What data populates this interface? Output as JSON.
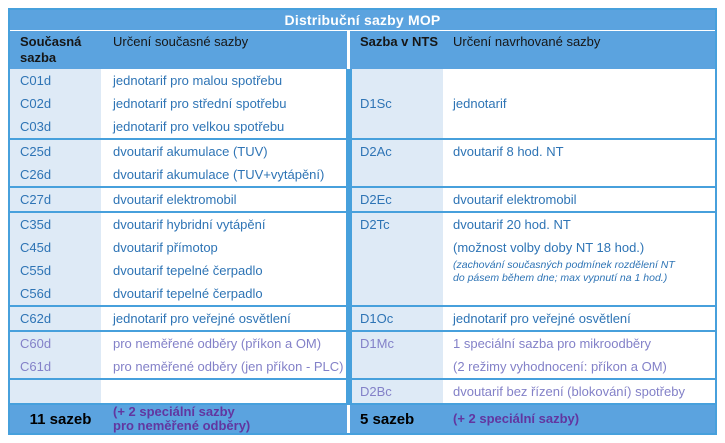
{
  "title": "Distribuční sazby MOP",
  "header": {
    "current_rate": "Současná sazba",
    "current_desc": "Určení současné sazby",
    "nts_rate": "Sazba v NTS",
    "proposed_desc": "Určení navrhované sazby"
  },
  "groups": [
    {
      "special": false,
      "left": [
        {
          "code": "C01d",
          "desc": "jednotarif pro malou spotřebu"
        },
        {
          "code": "C02d",
          "desc": "jednotarif pro střední spotřebu"
        },
        {
          "code": "C03d",
          "desc": "jednotarif pro velkou spotřebu"
        }
      ],
      "right": {
        "code": "D1Sc",
        "valign": "center",
        "lines": [
          {
            "text": "jednotarif",
            "style": "normal"
          }
        ]
      }
    },
    {
      "special": false,
      "left": [
        {
          "code": "C25d",
          "desc": "dvoutarif akumulace (TUV)"
        },
        {
          "code": "C26d",
          "desc": "dvoutarif akumulace (TUV+vytápění)"
        }
      ],
      "right": {
        "code": "D2Ac",
        "valign": "top",
        "lines": [
          {
            "text": "dvoutarif 8 hod. NT",
            "style": "normal"
          }
        ]
      }
    },
    {
      "special": false,
      "left": [
        {
          "code": "C27d",
          "desc": "dvoutarif elektromobil"
        }
      ],
      "right": {
        "code": "D2Ec",
        "valign": "top",
        "lines": [
          {
            "text": "dvoutarif elektromobil",
            "style": "normal"
          }
        ]
      }
    },
    {
      "special": false,
      "left": [
        {
          "code": "C35d",
          "desc": "dvoutarif hybridní vytápění"
        },
        {
          "code": "C45d",
          "desc": "dvoutarif přímotop"
        },
        {
          "code": "C55d",
          "desc": "dvoutarif tepelné čerpadlo"
        },
        {
          "code": "C56d",
          "desc": "dvoutarif tepelné čerpadlo"
        }
      ],
      "right": {
        "code": "D2Tc",
        "valign": "top",
        "lines": [
          {
            "text": "dvoutarif 20 hod. NT",
            "style": "normal"
          },
          {
            "text": "(možnost volby doby NT 18 hod.)",
            "style": "normal"
          },
          {
            "text": "(zachování současných podmínek rozdělení NT",
            "style": "fine"
          },
          {
            "text": "do pásem během dne; max vypnutí na 1 hod.)",
            "style": "fine"
          }
        ]
      }
    },
    {
      "special": false,
      "left": [
        {
          "code": "C62d",
          "desc": "jednotarif pro veřejné osvětlení"
        }
      ],
      "right": {
        "code": "D1Oc",
        "valign": "top",
        "lines": [
          {
            "text": "jednotarif pro veřejné osvětlení",
            "style": "normal"
          }
        ]
      }
    },
    {
      "special": true,
      "left": [
        {
          "code": "C60d",
          "desc": "pro neměřené odběry (příkon a OM)"
        },
        {
          "code": "C61d",
          "desc": "pro neměřené odběry (jen příkon - PLC)"
        }
      ],
      "right": {
        "code": "D1Mc",
        "valign": "top",
        "lines": [
          {
            "text": "1 speciální sazba pro mikroodběry",
            "style": "normal"
          },
          {
            "text": "(2 režimy vyhodnocení: příkon a OM)",
            "style": "normal"
          }
        ]
      }
    },
    {
      "special": true,
      "left": [],
      "right": {
        "code": "D2Bc",
        "valign": "top",
        "lines": [
          {
            "text": "dvoutarif bez řízení (blokování) spotřeby",
            "style": "normal"
          }
        ]
      }
    }
  ],
  "footer": {
    "left_count": "11 sazeb",
    "left_note_lines": [
      "(+ 2 speciální sazby",
      "pro neměřené odběry)"
    ],
    "right_count": "5 sazeb",
    "right_note_lines": [
      "(+ 2 speciální sazby)"
    ]
  },
  "colors": {
    "header_blue": "#5BA3DF",
    "light_blue": "#DEEAF6",
    "border_blue": "#47A0DC",
    "text_blue": "#2E74B5",
    "special_purple": "#8381C8",
    "footer_purple": "#6236A0"
  }
}
